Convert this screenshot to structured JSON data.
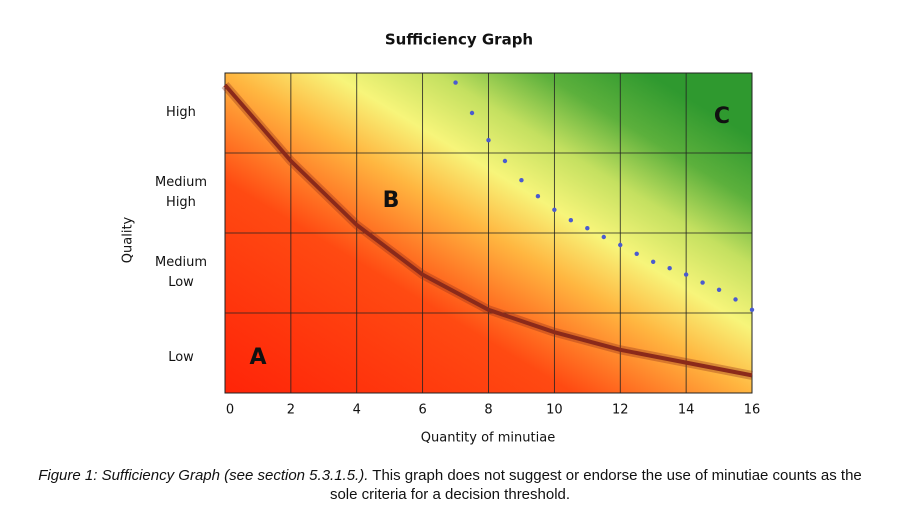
{
  "chart_data": {
    "type": "line",
    "title": "Sufficiency Graph",
    "x_label": "Quantity of minutiae",
    "y_label": "Quality",
    "xlim": [
      0,
      16
    ],
    "xticks": [
      0,
      2,
      4,
      6,
      8,
      10,
      12,
      14,
      16
    ],
    "ylim": [
      0,
      4
    ],
    "y_categories": [
      "Low",
      "Medium Low",
      "Medium High",
      "High"
    ],
    "grid": true,
    "series": [
      {
        "style": "solid",
        "color": "#8b2a1a",
        "x": [
          0,
          2,
          4,
          6,
          8,
          10,
          12,
          14,
          16
        ],
        "values": [
          3.85,
          2.9,
          2.1,
          1.48,
          1.04,
          0.76,
          0.54,
          0.38,
          0.22
        ]
      },
      {
        "style": "dotted",
        "color": "#4a5bd0",
        "x": [
          7,
          7.5,
          8,
          8.5,
          9,
          9.5,
          10,
          10.5,
          11,
          11.5,
          12,
          12.5,
          13,
          13.5,
          14,
          14.5,
          15,
          15.5,
          16
        ],
        "values": [
          3.88,
          3.5,
          3.16,
          2.9,
          2.66,
          2.46,
          2.29,
          2.16,
          2.06,
          1.95,
          1.85,
          1.74,
          1.64,
          1.56,
          1.48,
          1.38,
          1.29,
          1.17,
          1.04
        ]
      }
    ],
    "annotations": [
      "A",
      "B",
      "C"
    ]
  },
  "caption": {
    "label": "Figure 1: Sufficiency Graph (see section 5.3.1.5.).",
    "text": "This graph does not suggest or endorse the use of minutiae counts as the sole criteria for a decision threshold."
  }
}
